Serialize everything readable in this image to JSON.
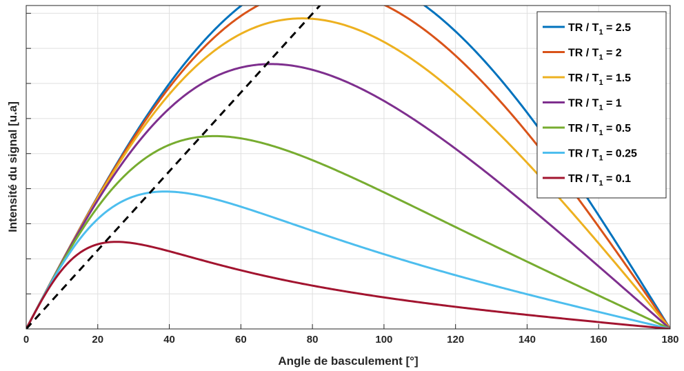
{
  "chart_data": {
    "type": "line",
    "title": "",
    "xlabel": "Angle de basculement [°]",
    "ylabel": "Intensité du signal [u.a]",
    "xlim": [
      0,
      180
    ],
    "ylim": [
      0,
      0.83
    ],
    "xticks": [
      0,
      20,
      40,
      60,
      80,
      100,
      120,
      140,
      160,
      180
    ],
    "yticks": [
      0.09,
      0.18,
      0.27,
      0.36,
      0.45,
      0.54,
      0.63,
      0.72,
      0.81
    ],
    "grid": true,
    "y_tick_labels_shown": false,
    "legend_position": "top-right",
    "series": [
      {
        "name": "TR / T1 = 2.5",
        "label_main": "TR / T",
        "label_sub": "1",
        "label_tail": " = 2.5",
        "tr_t1": 2.5,
        "color": "#0072BD"
      },
      {
        "name": "TR / T1 = 2",
        "label_main": "TR / T",
        "label_sub": "1",
        "label_tail": " = 2",
        "tr_t1": 2,
        "color": "#D95319"
      },
      {
        "name": "TR / T1 = 1.5",
        "label_main": "TR / T",
        "label_sub": "1",
        "label_tail": " = 1.5",
        "tr_t1": 1.5,
        "color": "#EDB120"
      },
      {
        "name": "TR / T1 = 1",
        "label_main": "TR / T",
        "label_sub": "1",
        "label_tail": " = 1",
        "tr_t1": 1,
        "color": "#7E2F8E"
      },
      {
        "name": "TR / T1 = 0.5",
        "label_main": "TR / T",
        "label_sub": "1",
        "label_tail": " = 0.5",
        "tr_t1": 0.5,
        "color": "#77AC30"
      },
      {
        "name": "TR / T1 = 0.25",
        "label_main": "TR / T",
        "label_sub": "1",
        "label_tail": " = 0.25",
        "tr_t1": 0.25,
        "color": "#4DBEEE"
      },
      {
        "name": "TR / T1 = 0.1",
        "label_main": "TR / T",
        "label_sub": "1",
        "label_tail": " = 0.1",
        "tr_t1": 0.1,
        "color": "#A2142F"
      }
    ],
    "annotation": {
      "style": "dashed",
      "color": "#000000",
      "x": [
        0,
        89
      ],
      "y": [
        0,
        0.9
      ]
    }
  }
}
